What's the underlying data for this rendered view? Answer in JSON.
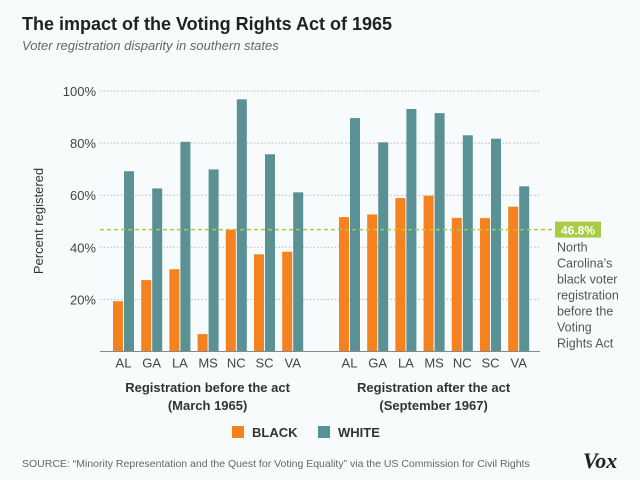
{
  "title": "The impact of the Voting Rights Act of 1965",
  "subtitle": "Voter registration disparity in southern states",
  "source": "SOURCE: “Minority Representation and the Quest for Voting Equality” via the US Commission for Civil Rights",
  "logo": "Vox",
  "chart_data": {
    "type": "bar",
    "ylabel": "Percent registered",
    "ylim": [
      0,
      100
    ],
    "yticks": [
      "20%",
      "40%",
      "60%",
      "80%",
      "100%"
    ],
    "grid": true,
    "legend_placement": "bottom",
    "colors": {
      "BLACK": "#f5821f",
      "WHITE": "#5a9194",
      "reference": "#a6cd45"
    },
    "groups": [
      {
        "label": "Registration before the act",
        "sublabel": "(March 1965)",
        "categories": [
          "AL",
          "GA",
          "LA",
          "MS",
          "NC",
          "SC",
          "VA"
        ],
        "series": [
          {
            "name": "BLACK",
            "values": [
              19.3,
              27.4,
              31.6,
              6.7,
              46.8,
              37.3,
              38.3
            ]
          },
          {
            "name": "WHITE",
            "values": [
              69.2,
              62.6,
              80.5,
              69.9,
              96.8,
              75.7,
              61.1
            ]
          }
        ]
      },
      {
        "label": "Registration after the act",
        "sublabel": "(September 1967)",
        "categories": [
          "AL",
          "GA",
          "LA",
          "MS",
          "NC",
          "SC",
          "VA"
        ],
        "series": [
          {
            "name": "BLACK",
            "values": [
              51.6,
              52.6,
              58.9,
              59.8,
              51.3,
              51.2,
              55.6
            ]
          },
          {
            "name": "WHITE",
            "values": [
              89.6,
              80.3,
              93.1,
              91.5,
              83.0,
              81.7,
              63.4
            ]
          }
        ]
      }
    ],
    "reference_line": {
      "value": 46.8,
      "label": "46.8%",
      "annotation": [
        "North",
        "Carolina’s",
        "black voter",
        "registration",
        "before the",
        "Voting",
        "Rights Act"
      ]
    },
    "legend": [
      "BLACK",
      "WHITE"
    ]
  }
}
